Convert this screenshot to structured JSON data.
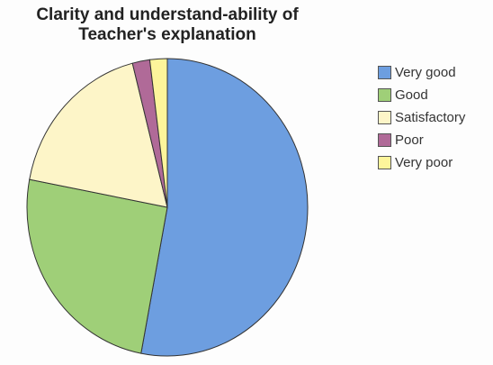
{
  "chart_data": {
    "type": "pie",
    "title": "Clarity and understand-ability of Teacher's explanation",
    "categories": [
      "Very good",
      "Good",
      "Satisfactory",
      "Poor",
      "Very poor"
    ],
    "values": [
      53,
      25,
      18,
      2,
      2
    ],
    "colors": [
      "#6d9ee0",
      "#9fcf78",
      "#fdf5c8",
      "#b06a98",
      "#fdf59b"
    ],
    "legend": "right"
  }
}
